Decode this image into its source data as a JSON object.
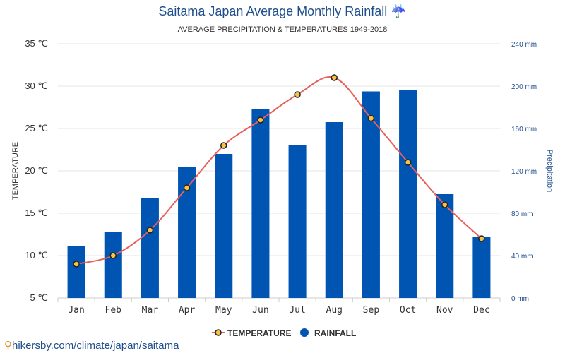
{
  "page": {
    "title": "Saitama Japan Average Monthly Rainfall ☔",
    "subtitle": "AVERAGE PRECIPITATION & TEMPERATURES 1949-2018",
    "footer_text": "hikersby.com/climate/japan/saitama"
  },
  "colors": {
    "bar": "#0055b3",
    "line": "#e8605a",
    "marker_fill": "#f6c24a",
    "marker_stroke": "#222222",
    "grid": "#e6e6e6",
    "left_axis_text": "#333333",
    "right_axis_text": "#1f4e8c",
    "title": "#1f4e8c"
  },
  "chart_data": {
    "type": "bar",
    "categories": [
      "Jan",
      "Feb",
      "Mar",
      "Apr",
      "May",
      "Jun",
      "Jul",
      "Aug",
      "Sep",
      "Oct",
      "Nov",
      "Dec"
    ],
    "series": [
      {
        "name": "TEMPERATURE",
        "type": "line",
        "axis": "left",
        "values": [
          9,
          10,
          13,
          18,
          23,
          26,
          29,
          31,
          26.2,
          21,
          16,
          12
        ]
      },
      {
        "name": "RAINFALL",
        "type": "bar",
        "axis": "right",
        "values": [
          49,
          62,
          94,
          124,
          136,
          178,
          144,
          166,
          195,
          196,
          98,
          58
        ]
      }
    ],
    "ylabel": "TEMPERATURE",
    "ylabel_right": "Precipitation",
    "ylim": [
      5,
      35
    ],
    "ylim_right": [
      0,
      240
    ],
    "left_ticks": [
      "5 ℃",
      "10 ℃",
      "15 ℃",
      "20 ℃",
      "25 ℃",
      "30 ℃",
      "35 ℃"
    ],
    "right_ticks": [
      "0 mm",
      "40 mm",
      "80 mm",
      "120 mm",
      "160 mm",
      "200 mm",
      "240 mm"
    ],
    "legend": [
      {
        "label": "TEMPERATURE",
        "kind": "line-marker"
      },
      {
        "label": "RAINFALL",
        "kind": "circle"
      }
    ],
    "legend_position": "bottom",
    "grid": true
  }
}
